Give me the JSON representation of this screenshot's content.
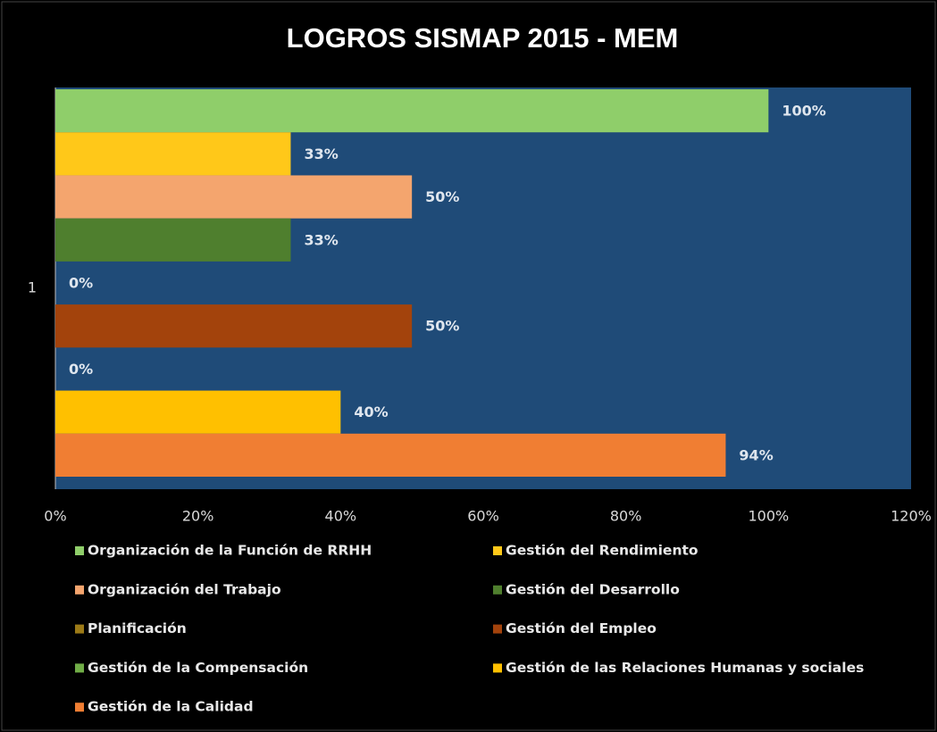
{
  "chart_data": {
    "type": "bar",
    "orientation": "horizontal",
    "title": "LOGROS SISMAP 2015 - MEM",
    "categories": [
      "1"
    ],
    "series": [
      {
        "name": "Organización de la Función de RRHH",
        "color": "#8fce6a",
        "values": [
          100
        ],
        "value_labels": [
          "100%"
        ]
      },
      {
        "name": "Gestión del Rendimiento",
        "color": "#ffc819",
        "values": [
          33
        ],
        "value_labels": [
          "33%"
        ]
      },
      {
        "name": "Organización del Trabajo",
        "color": "#f4a56e",
        "values": [
          50
        ],
        "value_labels": [
          "50%"
        ]
      },
      {
        "name": "Gestión del Desarrollo",
        "color": "#4f7f2e",
        "values": [
          33
        ],
        "value_labels": [
          "33%"
        ]
      },
      {
        "name": "Planificación",
        "color": "#9c7a17",
        "values": [
          0
        ],
        "value_labels": [
          "0%"
        ]
      },
      {
        "name": "Gestión del Empleo",
        "color": "#a3430c",
        "values": [
          50
        ],
        "value_labels": [
          "50%"
        ]
      },
      {
        "name": "Gestión de la Compensación",
        "color": "#70ad47",
        "values": [
          0
        ],
        "value_labels": [
          "0%"
        ]
      },
      {
        "name": "Gestión de las Relaciones Humanas y sociales",
        "color": "#ffc000",
        "values": [
          40
        ],
        "value_labels": [
          "40%"
        ]
      },
      {
        "name": "Gestión de la Calidad",
        "color": "#f07e33",
        "values": [
          94
        ],
        "value_labels": [
          "94%"
        ]
      }
    ],
    "xlim": [
      0,
      120
    ],
    "xticks": [
      {
        "value": 0,
        "label": "0%"
      },
      {
        "value": 20,
        "label": "20%"
      },
      {
        "value": 40,
        "label": "40%"
      },
      {
        "value": 60,
        "label": "60%"
      },
      {
        "value": 80,
        "label": "80%"
      },
      {
        "value": 100,
        "label": "100%"
      },
      {
        "value": 120,
        "label": "120%"
      }
    ],
    "grid": false,
    "plot_background": "#1f4b78"
  }
}
